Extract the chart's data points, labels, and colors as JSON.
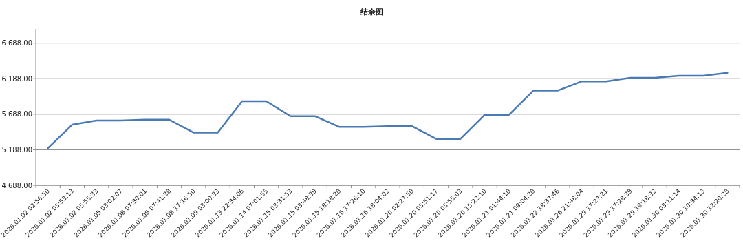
{
  "chart_data": {
    "type": "line",
    "title": "结余图",
    "categories": [
      "2026.01.02 02:56:50",
      "2026.01.02 05:53:13",
      "2026.01.02 05:55:33",
      "2026.01.05 03:02:07",
      "2026.01.08 07:30:01",
      "2026.01.08 07:41:38",
      "2026.01.08 17:16:50",
      "2026.01.09 03:00:33",
      "2026.01.13 22:34:06",
      "2026.01.14 07:01:55",
      "2026.01.15 03:31:53",
      "2026.01.15 03:48:39",
      "2026.01.15 18:18:20",
      "2026.01.16 17:26:10",
      "2026.01.16 18:04:02",
      "2026.01.20 02:27:50",
      "2026.01.20 05:51:17",
      "2026.01.20 05:55:03",
      "2026.01.20 15:22:10",
      "2026.01.21 01:44:10",
      "2026.01.21 09:04:20",
      "2026.01.22 18:37:46",
      "2026.01.26 21:48:04",
      "2026.01.29 17:27:21",
      "2026.01.29 17:28:39",
      "2026.01.29 19:18:32",
      "2026.01.30 03:11:14",
      "2026.01.30 10:34:13",
      "2026.01.30 12:20:28"
    ],
    "series": [
      {
        "color": "#4a7ab4",
        "values": [
          5210,
          5540,
          5600,
          5600,
          5610,
          5610,
          5430,
          5430,
          5870,
          5870,
          5660,
          5660,
          5510,
          5510,
          5520,
          5520,
          5340,
          5340,
          5680,
          5680,
          6020,
          6020,
          6150,
          6150,
          6200,
          6200,
          6230,
          6230,
          6270
        ]
      }
    ],
    "ylim": [
      4688,
      6888
    ],
    "yticks": [
      {
        "value": 4688,
        "label": "4 688.00"
      },
      {
        "value": 5188,
        "label": "5 188.00"
      },
      {
        "value": 5688,
        "label": "5 688.00"
      },
      {
        "value": 6188,
        "label": "6 188.00"
      },
      {
        "value": 6688,
        "label": "6 688.00"
      }
    ],
    "grid": "y",
    "marker": "none",
    "line_style": "solid"
  }
}
